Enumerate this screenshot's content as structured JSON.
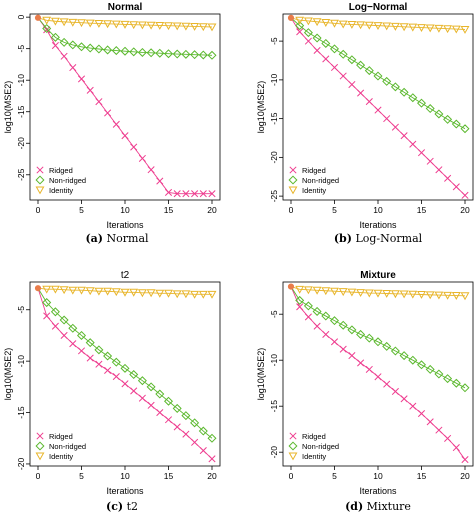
{
  "colors": {
    "ridged": "#ee3d8f",
    "nonridged": "#5bb82e",
    "identity": "#e8b52a",
    "start": "#e97c4a"
  },
  "legend_labels": [
    "Ridged",
    "Non-ridged",
    "Identity"
  ],
  "chart_data": [
    {
      "type": "line",
      "title": "Normal",
      "title_bold": true,
      "xlabel": "Iterations",
      "ylabel": "log10(MSE2)",
      "xlim": [
        0,
        20
      ],
      "ylim": [
        -29,
        0.5
      ],
      "xticks": [
        0,
        5,
        10,
        15,
        20
      ],
      "yticks": [
        0,
        -5,
        -10,
        -15,
        -20,
        -25
      ],
      "legend": "bottom-left",
      "caption_label": "(a)",
      "caption_text": "Normal",
      "x": [
        0,
        1,
        2,
        3,
        4,
        5,
        6,
        7,
        8,
        9,
        10,
        11,
        12,
        13,
        14,
        15,
        16,
        17,
        18,
        19,
        20
      ],
      "series": [
        {
          "name": "Ridged",
          "marker": "x",
          "values": [
            -0.1,
            -2,
            -4.5,
            -6.2,
            -8,
            -9.8,
            -11.6,
            -13.4,
            -15.2,
            -17,
            -18.8,
            -20.6,
            -22.4,
            -24.2,
            -26,
            -27.8,
            -28,
            -28,
            -28,
            -28,
            -28
          ]
        },
        {
          "name": "Non-ridged",
          "marker": "diamond",
          "values": [
            -0.1,
            -1.8,
            -3.2,
            -4,
            -4.4,
            -4.7,
            -4.9,
            -5.05,
            -5.2,
            -5.3,
            -5.4,
            -5.5,
            -5.6,
            -5.65,
            -5.72,
            -5.8,
            -5.85,
            -5.9,
            -5.95,
            -6,
            -6.05
          ]
        },
        {
          "name": "Identity",
          "marker": "triangle",
          "values": [
            -0.1,
            -0.5,
            -0.65,
            -0.75,
            -0.82,
            -0.88,
            -0.95,
            -1,
            -1.05,
            -1.1,
            -1.15,
            -1.2,
            -1.24,
            -1.28,
            -1.32,
            -1.36,
            -1.4,
            -1.44,
            -1.48,
            -1.52,
            -1.56
          ]
        }
      ]
    },
    {
      "type": "line",
      "title": "Log−Normal",
      "title_bold": true,
      "xlabel": "Iterations",
      "ylabel": "log10(MSE2)",
      "xlim": [
        0,
        20
      ],
      "ylim": [
        -25.5,
        -1.5
      ],
      "xticks": [
        0,
        5,
        10,
        15,
        20
      ],
      "yticks": [
        -5,
        -10,
        -15,
        -20,
        -25
      ],
      "legend": "bottom-left",
      "caption_label": "(b)",
      "caption_text": "Log-Normal",
      "x": [
        0,
        1,
        2,
        3,
        4,
        5,
        6,
        7,
        8,
        9,
        10,
        11,
        12,
        13,
        14,
        15,
        16,
        17,
        18,
        19,
        20
      ],
      "series": [
        {
          "name": "Ridged",
          "marker": "x",
          "values": [
            -2,
            -3.8,
            -5,
            -6.2,
            -7.3,
            -8.4,
            -9.5,
            -10.6,
            -11.7,
            -12.8,
            -13.9,
            -15,
            -16.1,
            -17.2,
            -18.3,
            -19.4,
            -20.5,
            -21.6,
            -22.7,
            -23.8,
            -24.9
          ]
        },
        {
          "name": "Non-ridged",
          "marker": "diamond",
          "values": [
            -2,
            -3,
            -3.9,
            -4.6,
            -5.3,
            -6,
            -6.7,
            -7.4,
            -8.1,
            -8.8,
            -9.5,
            -10.2,
            -10.9,
            -11.6,
            -12.3,
            -13,
            -13.7,
            -14.4,
            -15.1,
            -15.7,
            -16.3
          ]
        },
        {
          "name": "Identity",
          "marker": "triangle",
          "values": [
            -2,
            -2.3,
            -2.4,
            -2.5,
            -2.6,
            -2.7,
            -2.8,
            -2.85,
            -2.9,
            -2.95,
            -3,
            -3.05,
            -3.1,
            -3.15,
            -3.2,
            -3.25,
            -3.3,
            -3.35,
            -3.4,
            -3.45,
            -3.5
          ]
        }
      ]
    },
    {
      "type": "line",
      "title": "t2",
      "title_bold": false,
      "xlabel": "Iterations",
      "ylabel": "log10(MSE2)",
      "xlim": [
        0,
        20
      ],
      "ylim": [
        -20.2,
        -2.3
      ],
      "xticks": [
        0,
        5,
        10,
        15,
        20
      ],
      "yticks": [
        -5,
        -10,
        -15,
        -20
      ],
      "legend": "bottom-left",
      "caption_label": "(c)",
      "caption_text": "t2",
      "x": [
        0,
        1,
        2,
        3,
        4,
        5,
        6,
        7,
        8,
        9,
        10,
        11,
        12,
        13,
        14,
        15,
        16,
        17,
        18,
        19,
        20
      ],
      "series": [
        {
          "name": "Ridged",
          "marker": "x",
          "values": [
            -2.9,
            -5.6,
            -6.6,
            -7.5,
            -8.3,
            -9,
            -9.7,
            -10.3,
            -10.9,
            -11.5,
            -12.2,
            -12.9,
            -13.6,
            -14.3,
            -15,
            -15.7,
            -16.4,
            -17.1,
            -17.9,
            -18.7,
            -19.5
          ]
        },
        {
          "name": "Non-ridged",
          "marker": "diamond",
          "values": [
            -2.9,
            -4.3,
            -5.2,
            -6,
            -6.8,
            -7.5,
            -8.2,
            -8.9,
            -9.5,
            -10.1,
            -10.7,
            -11.3,
            -11.9,
            -12.5,
            -13.2,
            -13.9,
            -14.6,
            -15.3,
            -16,
            -16.8,
            -17.5
          ]
        },
        {
          "name": "Identity",
          "marker": "triangle",
          "values": [
            -2.9,
            -3,
            -3,
            -3.05,
            -3.1,
            -3.1,
            -3.15,
            -3.2,
            -3.2,
            -3.25,
            -3.3,
            -3.3,
            -3.35,
            -3.35,
            -3.4,
            -3.4,
            -3.45,
            -3.45,
            -3.5,
            -3.5,
            -3.5
          ]
        }
      ]
    },
    {
      "type": "line",
      "title": "Mixture",
      "title_bold": true,
      "xlabel": "Iterations",
      "ylabel": "log10(MSE2)",
      "xlim": [
        0,
        20
      ],
      "ylim": [
        -21.5,
        -1.5
      ],
      "xticks": [
        0,
        5,
        10,
        15,
        20
      ],
      "yticks": [
        -5,
        -10,
        -15,
        -20
      ],
      "legend": "bottom-left",
      "caption_label": "(d)",
      "caption_text": "Mixture",
      "x": [
        0,
        1,
        2,
        3,
        4,
        5,
        6,
        7,
        8,
        9,
        10,
        11,
        12,
        13,
        14,
        15,
        16,
        17,
        18,
        19,
        20
      ],
      "series": [
        {
          "name": "Ridged",
          "marker": "x",
          "values": [
            -2,
            -4.2,
            -5.3,
            -6.3,
            -7.2,
            -8,
            -8.8,
            -9.5,
            -10.3,
            -11,
            -11.8,
            -12.6,
            -13.4,
            -14.2,
            -15,
            -15.8,
            -16.7,
            -17.6,
            -18.5,
            -19.5,
            -20.8
          ]
        },
        {
          "name": "Non-ridged",
          "marker": "diamond",
          "values": [
            -2,
            -3.5,
            -4.1,
            -4.7,
            -5.2,
            -5.7,
            -6.2,
            -6.7,
            -7.2,
            -7.6,
            -8,
            -8.5,
            -9,
            -9.5,
            -10,
            -10.5,
            -11,
            -11.5,
            -12,
            -12.5,
            -13
          ]
        },
        {
          "name": "Identity",
          "marker": "triangle",
          "values": [
            -2,
            -2.3,
            -2.35,
            -2.4,
            -2.45,
            -2.5,
            -2.55,
            -2.6,
            -2.65,
            -2.7,
            -2.72,
            -2.75,
            -2.78,
            -2.8,
            -2.83,
            -2.86,
            -2.9,
            -2.92,
            -2.95,
            -2.97,
            -3
          ]
        }
      ]
    }
  ]
}
